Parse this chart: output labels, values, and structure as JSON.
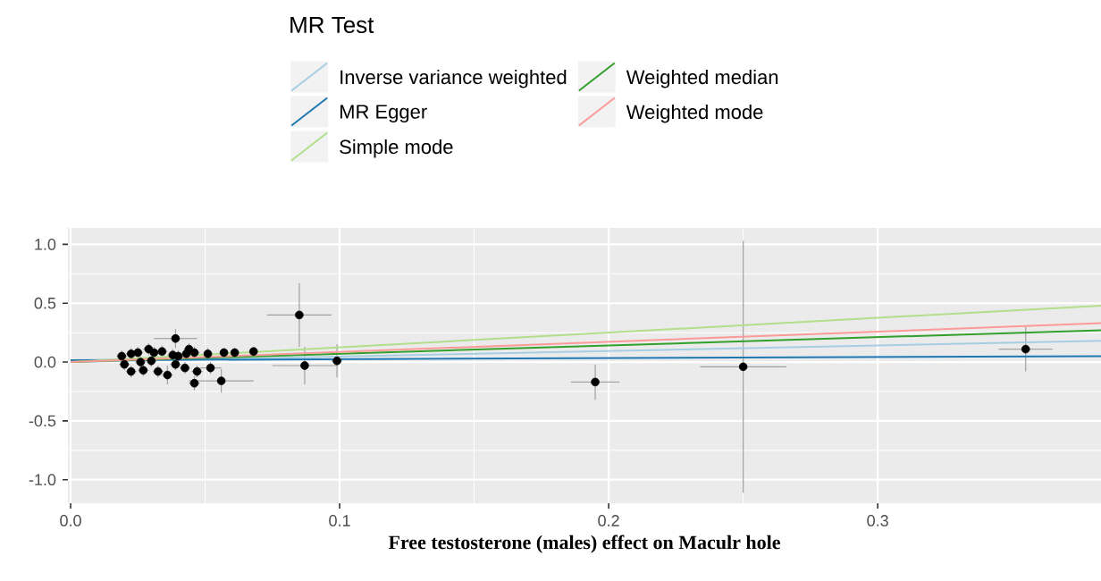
{
  "chart_data": {
    "type": "scatter",
    "xlabel": "Free testosterone (males) effect on Maculr hole",
    "legend_title": "MR Test",
    "legend": "top",
    "grid": true,
    "line_style": "solid",
    "xlim": [
      -0.001,
      0.383
    ],
    "ylim": [
      -1.2,
      1.14
    ],
    "xticks": [
      {
        "value": 0,
        "label": "0.0"
      },
      {
        "value": 0.1,
        "label": "0.1"
      },
      {
        "value": 0.2,
        "label": "0.2"
      },
      {
        "value": 0.3,
        "label": "0.3"
      }
    ],
    "yticks": [
      {
        "value": -1,
        "label": "-1.0"
      },
      {
        "value": -0.5,
        "label": "-0.5"
      },
      {
        "value": 0,
        "label": "0.0"
      },
      {
        "value": 0.5,
        "label": "0.5"
      },
      {
        "value": 1,
        "label": "1.0"
      }
    ],
    "series": [
      {
        "marker": "circle",
        "color": "#000000",
        "x": [
          0.039,
          0.046,
          0.056,
          0.052,
          0.051,
          0.057,
          0.061,
          0.068,
          0.044,
          0.029,
          0.0225,
          0.02,
          0.0225,
          0.027,
          0.0325,
          0.036,
          0.039,
          0.0425,
          0.047,
          0.025,
          0.031,
          0.034,
          0.038,
          0.043,
          0.046,
          0.03,
          0.019,
          0.026,
          0.04,
          0.085,
          0.087,
          0.099,
          0.195,
          0.25,
          0.355
        ],
        "values": [
          0.2,
          -0.18,
          -0.16,
          -0.05,
          0.07,
          0.08,
          0.08,
          0.09,
          0.11,
          0.11,
          0.07,
          -0.02,
          -0.08,
          -0.07,
          -0.08,
          -0.11,
          -0.02,
          -0.05,
          -0.08,
          0.08,
          0.08,
          0.09,
          0.06,
          0.07,
          0.08,
          0.01,
          0.05,
          0.0,
          0.05,
          0.4,
          -0.03,
          0.01,
          -0.17,
          -0.04,
          0.11
        ],
        "errors": [
          0.08,
          0.06,
          0.1,
          0.05,
          0.05,
          0.04,
          0.04,
          0.02,
          0.05,
          0.05,
          0.05,
          0.05,
          0.05,
          0.05,
          0.05,
          0.08,
          0.05,
          0.05,
          0.05,
          0.05,
          0.05,
          0.05,
          0.05,
          0.05,
          0.05,
          0.05,
          0.05,
          0.05,
          0.05,
          0.27,
          0.16,
          0.14,
          0.15,
          1.07,
          0.19
        ],
        "xerrors": [
          0.008,
          0.002,
          0.012,
          0.004,
          0.0015,
          0.0015,
          0.0015,
          0.001,
          0.002,
          0.002,
          0.002,
          0.002,
          0.002,
          0.002,
          0.002,
          0.002,
          0.002,
          0.002,
          0.002,
          0.002,
          0.002,
          0.002,
          0.002,
          0.002,
          0.002,
          0.002,
          0.002,
          0.002,
          0.002,
          0.012,
          0.012,
          0.002,
          0.009,
          0.016,
          0.01
        ]
      },
      {
        "type": "line",
        "name": "Inverse variance weighted",
        "color": "#a6cee3",
        "x": [
          0,
          0.383
        ],
        "values": [
          0,
          0.18
        ]
      },
      {
        "type": "line",
        "name": "MR Egger",
        "color": "#1f78b4",
        "x": [
          0,
          0.383
        ],
        "values": [
          0.015,
          0.05
        ]
      },
      {
        "type": "line",
        "name": "Simple mode",
        "color": "#b2df8a",
        "x": [
          0,
          0.383
        ],
        "values": [
          0,
          0.48
        ]
      },
      {
        "type": "line",
        "name": "Weighted median",
        "color": "#33a02c",
        "x": [
          0,
          0.383
        ],
        "values": [
          0,
          0.27
        ]
      },
      {
        "type": "line",
        "name": "Weighted mode",
        "color": "#fb9a99",
        "x": [
          0,
          0.383
        ],
        "values": [
          0,
          0.33
        ]
      }
    ]
  }
}
